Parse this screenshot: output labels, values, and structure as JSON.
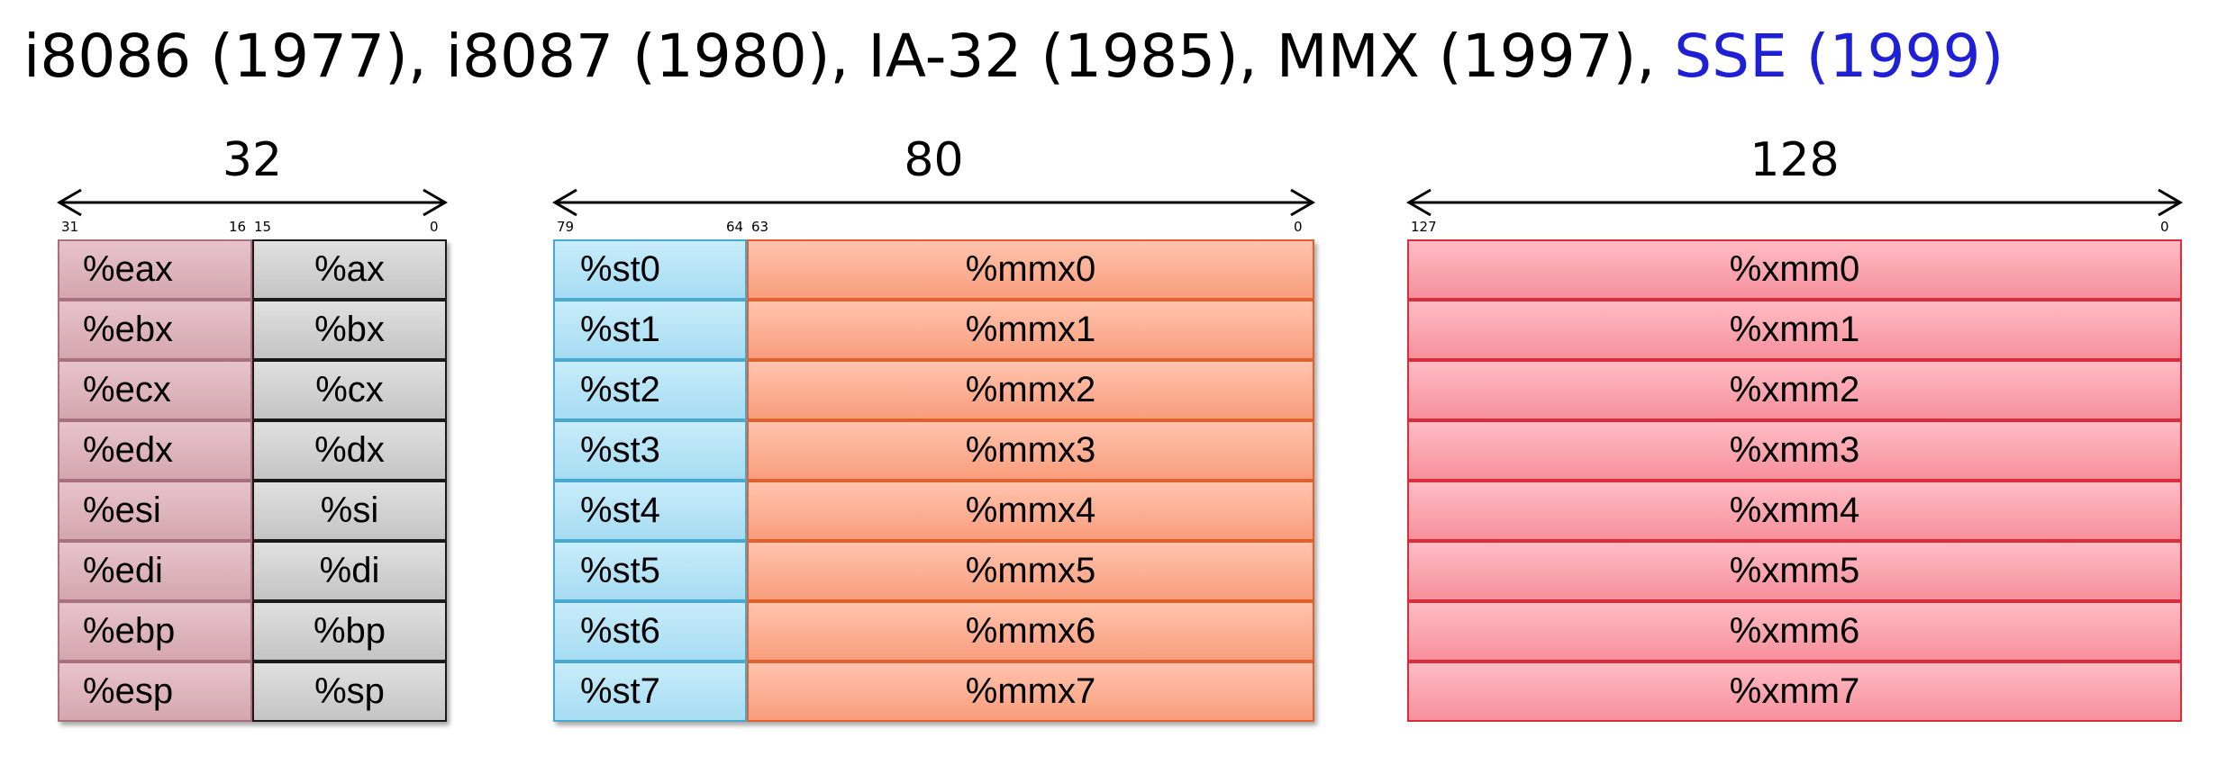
{
  "title": {
    "main": "i8086 (1977), i8087 (1980), IA-32 (1985), MMX (1997), ",
    "highlight": "SSE (1999)",
    "highlight_color": "#1f1fd6"
  },
  "gp_registers": {
    "width_label": "32",
    "bits": {
      "hi_left": "31",
      "hi_right": "16",
      "lo_left": "15",
      "lo_right": "0"
    },
    "rows": [
      {
        "e": "%eax",
        "x": "%ax"
      },
      {
        "e": "%ebx",
        "x": "%bx"
      },
      {
        "e": "%ecx",
        "x": "%cx"
      },
      {
        "e": "%edx",
        "x": "%dx"
      },
      {
        "e": "%esi",
        "x": "%si"
      },
      {
        "e": "%edi",
        "x": "%di"
      },
      {
        "e": "%ebp",
        "x": "%bp"
      },
      {
        "e": "%esp",
        "x": "%sp"
      }
    ]
  },
  "fpu_registers": {
    "width_label": "80",
    "bits": {
      "hi_left": "79",
      "hi_right": "64",
      "lo_left": "63",
      "lo_right": "0"
    },
    "rows": [
      {
        "st": "%st0",
        "mmx": "%mmx0"
      },
      {
        "st": "%st1",
        "mmx": "%mmx1"
      },
      {
        "st": "%st2",
        "mmx": "%mmx2"
      },
      {
        "st": "%st3",
        "mmx": "%mmx3"
      },
      {
        "st": "%st4",
        "mmx": "%mmx4"
      },
      {
        "st": "%st5",
        "mmx": "%mmx5"
      },
      {
        "st": "%st6",
        "mmx": "%mmx6"
      },
      {
        "st": "%st7",
        "mmx": "%mmx7"
      }
    ]
  },
  "sse_registers": {
    "width_label": "128",
    "bits": {
      "left": "127",
      "right": "0"
    },
    "rows": [
      "%xmm0",
      "%xmm1",
      "%xmm2",
      "%xmm3",
      "%xmm4",
      "%xmm5",
      "%xmm6",
      "%xmm7"
    ]
  },
  "colors": {
    "gp_high": "#d4a6b0",
    "gp_low": "#c4c4c4",
    "fpu_st": "#a6dcf2",
    "mmx": "#f99d7d",
    "xmm": "#f6909c"
  }
}
